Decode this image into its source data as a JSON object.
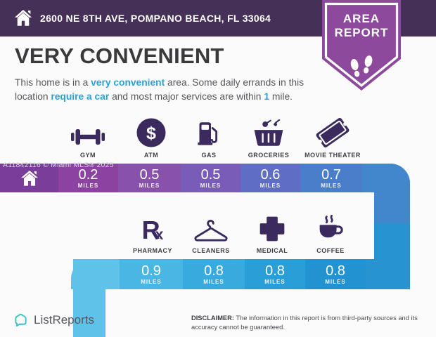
{
  "header": {
    "address": "2600 NE 8TH AVE, POMPANO BEACH, FL 33064",
    "badge": {
      "line1": "AREA",
      "line2": "REPORT",
      "color": "#8d4a9c",
      "bar_color": "#453057"
    }
  },
  "title": "VERY CONVENIENT",
  "description": {
    "segments": [
      {
        "text": "This home is in a "
      },
      {
        "text": "very convenient",
        "hl": true
      },
      {
        "text": " area. Some daily errands in this\nlocation "
      },
      {
        "text": "require a car",
        "hl": true
      },
      {
        "text": " and most major services are within "
      },
      {
        "text": "1",
        "hl": true
      },
      {
        "text": " mile."
      }
    ],
    "accent_color": "#29a3d7"
  },
  "watermark": "A11842116 © Miami MLS® 2025",
  "places_row1": [
    {
      "label": "GYM"
    },
    {
      "label": "ATM",
      "symbol": "$"
    },
    {
      "label": "GAS"
    },
    {
      "label": "GROCERIES"
    },
    {
      "label": "MOVIE THEATER"
    }
  ],
  "places_row2": [
    {
      "label": "PHARMACY",
      "glyph_r": "R",
      "glyph_x": "x"
    },
    {
      "label": "CLEANERS"
    },
    {
      "label": "MEDICAL"
    },
    {
      "label": "COFFEE"
    }
  ],
  "band1": {
    "home_color": "#7a3d99",
    "segments": [
      {
        "value": "0.2",
        "unit": "MILES",
        "color": "#8c42a0"
      },
      {
        "value": "0.5",
        "unit": "MILES",
        "color": "#8851ac"
      },
      {
        "value": "0.5",
        "unit": "MILES",
        "color": "#795cb8"
      },
      {
        "value": "0.6",
        "unit": "MILES",
        "color": "#5f6ec4"
      },
      {
        "value": "0.7",
        "unit": "MILES",
        "color": "#4a7eca"
      }
    ],
    "trail_color": "#4287cc"
  },
  "band2": {
    "turn_color": "#5fc2e9",
    "segments": [
      {
        "value": "0.9",
        "unit": "MILES",
        "color": "#49b6e3"
      },
      {
        "value": "0.8",
        "unit": "MILES",
        "color": "#38aadd"
      },
      {
        "value": "0.8",
        "unit": "MILES",
        "color": "#2a9ed7"
      },
      {
        "value": "0.8",
        "unit": "MILES",
        "color": "#2292d0"
      }
    ],
    "trail_color": "#2794d1"
  },
  "footer": {
    "logo_text": "ListReports",
    "logo_color": "#3cc2c4",
    "disclaimer_label": "DISCLAIMER:",
    "disclaimer_text": " The information in this report is from third-party sources and its\naccuracy cannot be guaranteed."
  }
}
